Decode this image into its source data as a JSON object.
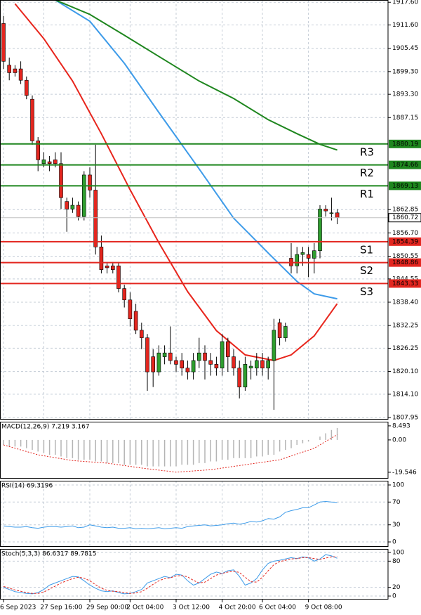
{
  "chart_data": [
    {
      "type": "candlestick",
      "categories": [
        "6 Sep 2023",
        null,
        null,
        null,
        null,
        null,
        null,
        "27 Sep 16:00",
        null,
        null,
        null,
        null,
        null,
        null,
        null,
        "29 Sep 00:00",
        null,
        null,
        null,
        null,
        null,
        null,
        "2 Oct 04:00",
        null,
        null,
        null,
        null,
        null,
        null,
        null,
        "3 Oct 12:00",
        null,
        null,
        null,
        null,
        null,
        null,
        null,
        "4 Oct 20:00",
        null,
        null,
        null,
        null,
        null,
        null,
        "6 Oct 04:00",
        null,
        null,
        null,
        null,
        null,
        null,
        null,
        "9 Oct 08:00",
        null,
        null,
        null,
        null,
        null
      ],
      "open": [
        1912,
        1901,
        1900,
        1900,
        1897,
        1892,
        1881,
        1875,
        1875.5,
        1876,
        1875,
        1865,
        1863,
        1864,
        1861,
        1872,
        1868,
        1853,
        1848,
        1848,
        1848,
        1842,
        1839,
        1836,
        1831,
        1829,
        1824,
        1820,
        1824,
        1825,
        1823,
        1823,
        1821,
        1820,
        1823,
        1825,
        1823,
        1822,
        1821,
        1828,
        1824,
        1821,
        1816,
        1821,
        1821,
        1823,
        1821,
        1823,
        1833,
        1829,
        1850,
        1848,
        1851,
        1851,
        1850,
        1852,
        1863,
        1862,
        1862
      ],
      "close": [
        1902,
        1899,
        1899,
        1897,
        1893,
        1881,
        1876,
        1876,
        1875,
        1875,
        1866,
        1863,
        1864,
        1861,
        1872,
        1868,
        1853,
        1847,
        1847.5,
        1847,
        1842,
        1839,
        1834,
        1831,
        1829,
        1820,
        1820,
        1825,
        1825,
        1823,
        1822,
        1821,
        1820,
        1823,
        1825,
        1823,
        1822,
        1821,
        1828,
        1824,
        1821,
        1816,
        1822,
        1821.5,
        1823,
        1821,
        1823,
        1831,
        1829,
        1832,
        1848,
        1851,
        1851.5,
        1850,
        1852,
        1863,
        1862.5,
        1862,
        1860.72
      ],
      "high": [
        1914,
        1903,
        1901,
        1902,
        1898,
        1893,
        1882,
        1878,
        1877,
        1878,
        1878,
        1866,
        1866,
        1865,
        1873,
        1874,
        1880,
        1856,
        1849,
        1849,
        1849,
        1843,
        1841,
        1838,
        1833,
        1830,
        1826,
        1827,
        1827,
        1832,
        1824,
        1825,
        1823,
        1825,
        1829,
        1827,
        1825,
        1824,
        1830,
        1829,
        1826,
        1823,
        1824,
        1823,
        1825,
        1825,
        1824,
        1834,
        1834,
        1833,
        1854,
        1853,
        1853,
        1853,
        1854,
        1864,
        1864,
        1866,
        1863
      ],
      "low": [
        1900,
        1897,
        1898,
        1896,
        1892,
        1880,
        1873,
        1874,
        1873,
        1874,
        1863,
        1857,
        1862,
        1860,
        1860,
        1866,
        1851,
        1846,
        1846,
        1846,
        1841,
        1837,
        1832,
        1830,
        1826,
        1815,
        1816,
        1819,
        1822,
        1822,
        1820,
        1819,
        1818,
        1818,
        1821,
        1818,
        1819,
        1819,
        1819,
        1820,
        1819,
        1813,
        1815,
        1818,
        1819,
        1819,
        1818,
        1810,
        1827,
        1828,
        1846,
        1846,
        1848,
        1845,
        1846,
        1850,
        1861,
        1860,
        1859
      ],
      "up_color": "#2e9e2e",
      "down_color": "#e3261f",
      "lines": [
        {
          "color": "#e8251c",
          "x": [
            2,
            7,
            12,
            17,
            22,
            27,
            32,
            37,
            42,
            47,
            50,
            54,
            58
          ],
          "values": [
            1917.2,
            1908,
            1896.8,
            1882.9,
            1868.1,
            1854.1,
            1841.2,
            1830.9,
            1824.5,
            1823,
            1824.5,
            1829.5,
            1838
          ]
        },
        {
          "color": "#3d9be9",
          "x": [
            9,
            15,
            21,
            27,
            34,
            40,
            46,
            51,
            54,
            58
          ],
          "values": [
            1918.2,
            1912.6,
            1901.5,
            1888.5,
            1873.6,
            1860.6,
            1851.4,
            1843.9,
            1840.6,
            1839.3
          ]
        },
        {
          "color": "#1e861e",
          "x": [
            9,
            15,
            21,
            27,
            34,
            40,
            46,
            51,
            55,
            58
          ],
          "values": [
            1918.2,
            1914.4,
            1908.9,
            1903.3,
            1896.8,
            1892.2,
            1886.6,
            1882.9,
            1880.1,
            1878.6
          ]
        }
      ],
      "levels": [
        {
          "label": "R3",
          "value": 1880.19,
          "color": "#1e861e"
        },
        {
          "label": "R2",
          "value": 1874.66,
          "color": "#1e861e"
        },
        {
          "label": "R1",
          "value": 1869.13,
          "color": "#1e861e"
        },
        {
          "label": "S1",
          "value": 1854.39,
          "color": "#e3261f"
        },
        {
          "label": "S2",
          "value": 1848.86,
          "color": "#e3261f"
        },
        {
          "label": "S3",
          "value": 1843.33,
          "color": "#e3261f"
        }
      ],
      "last_price": 1860.72,
      "ylim": [
        1807.4,
        1918.2
      ],
      "yticks": [
        {
          "value": 1917.6,
          "label": "1917.60"
        },
        {
          "value": 1911.6,
          "label": "1911.60"
        },
        1905.45,
        {
          "value": 1899.3,
          "label": "1899.30"
        },
        {
          "value": 1893.3,
          "label": "1893.30"
        },
        1887.15,
        1862.85,
        {
          "value": 1856.7,
          "label": "1856.70"
        },
        1850.55,
        1844.55,
        {
          "value": 1838.4,
          "label": "1838.40"
        },
        1832.25,
        1826.25,
        {
          "value": 1820.1,
          "label": "1820.10"
        },
        {
          "value": 1814.1,
          "label": "1814.10"
        },
        1807.95
      ],
      "grid": true
    },
    {
      "type": "bar",
      "title": "MACD(12,26,9) 7.219 3.167",
      "color": "#b4b4b4",
      "values": [
        -3,
        -4,
        -4,
        -4,
        -5,
        -6,
        -7,
        -8,
        -9,
        -9,
        -10,
        -11,
        -11,
        -12,
        -12,
        -12,
        -13,
        -13,
        -14,
        -14,
        -14,
        -15,
        -15,
        -15,
        -15,
        -16,
        -16,
        -16,
        -16,
        -16,
        -16,
        -15,
        -15,
        -15,
        -14,
        -14,
        -13,
        -13,
        -12,
        -12,
        -11,
        -11,
        -11,
        -11,
        -10,
        -10,
        -9,
        -9,
        -7,
        -6,
        -5,
        -3,
        -2,
        -1,
        0,
        2,
        4,
        6,
        7.219
      ],
      "signal": {
        "color": "#e3261f",
        "x": [
          0,
          6,
          12,
          18,
          24,
          30,
          36,
          42,
          48,
          54,
          58
        ],
        "values": [
          -3,
          -9,
          -12.5,
          -14,
          -17,
          -19.5,
          -18,
          -15,
          -12,
          -5,
          3.167
        ]
      },
      "ylim": [
        -23.4,
        11
      ],
      "yticks": [
        8.493,
        {
          "value": 0,
          "label": "0.00"
        },
        -19.546
      ],
      "grid": false
    },
    {
      "type": "line",
      "title": "RSI(14) 69.3196",
      "series": [
        {
          "color": "#3d9be9",
          "values": [
            28,
            27,
            26,
            26,
            27,
            25,
            24,
            26,
            27,
            27,
            26,
            27,
            28,
            25,
            26,
            30,
            28,
            26,
            25,
            26,
            24,
            24,
            25,
            23,
            24,
            23,
            24,
            25,
            23,
            24,
            25,
            24,
            27,
            28,
            29,
            30,
            28,
            29,
            30,
            32,
            33,
            31,
            33,
            36,
            35,
            37,
            41,
            40,
            44,
            52,
            55,
            57,
            60,
            60,
            65,
            70,
            71,
            70,
            69.3196
          ]
        }
      ],
      "ylim": [
        -8.6,
        107.4
      ],
      "yticks": [
        100,
        70,
        30,
        0
      ],
      "grid": true
    },
    {
      "type": "line",
      "title": "Stoch(5,3,3) 86.6317 89.7815",
      "series": [
        {
          "color": "#3d9be9",
          "values": [
            20,
            15,
            10,
            8,
            6,
            5,
            8,
            15,
            25,
            30,
            35,
            40,
            45,
            44,
            35,
            25,
            18,
            12,
            10,
            12,
            8,
            5,
            6,
            10,
            15,
            30,
            35,
            40,
            45,
            42,
            50,
            48,
            35,
            25,
            30,
            40,
            50,
            55,
            52,
            58,
            60,
            45,
            25,
            30,
            40,
            60,
            75,
            80,
            82,
            85,
            88,
            86,
            90,
            88,
            80,
            85,
            95,
            92,
            86.6317
          ]
        },
        {
          "color": "#e3261f",
          "dashed": true,
          "values": [
            22,
            18,
            14,
            11,
            8,
            6,
            6,
            9,
            16,
            23,
            30,
            35,
            40,
            43,
            41,
            35,
            26,
            18,
            13,
            11,
            10,
            8,
            6,
            7,
            10,
            18,
            27,
            35,
            40,
            42,
            46,
            47,
            44,
            36,
            30,
            32,
            40,
            48,
            52,
            55,
            57,
            54,
            43,
            33,
            32,
            43,
            58,
            72,
            79,
            82,
            85,
            86,
            88,
            88,
            86,
            84,
            87,
            90,
            89.7815
          ]
        }
      ],
      "ylim": [
        -8,
        108
      ],
      "yticks": [
        100,
        80,
        20,
        0
      ],
      "grid": true
    }
  ]
}
